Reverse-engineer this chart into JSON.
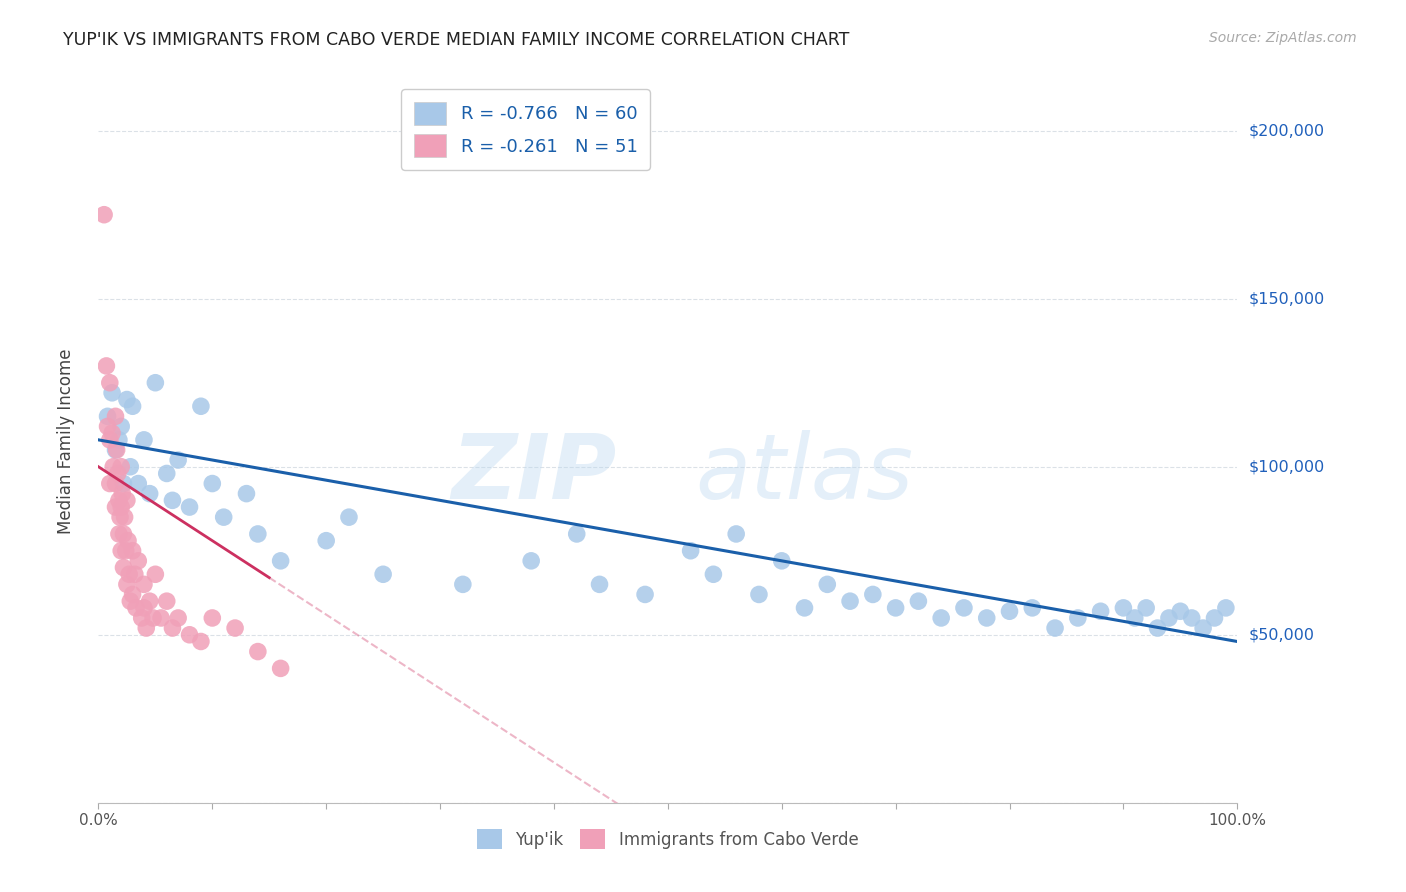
{
  "title": "YUP'IK VS IMMIGRANTS FROM CABO VERDE MEDIAN FAMILY INCOME CORRELATION CHART",
  "source_text": "Source: ZipAtlas.com",
  "ylabel": "Median Family Income",
  "xlim": [
    0,
    1.0
  ],
  "ylim": [
    0,
    215000
  ],
  "legend1_r": "-0.766",
  "legend1_n": "60",
  "legend2_r": "-0.261",
  "legend2_n": "51",
  "blue_scatter": "#a8c8e8",
  "pink_scatter": "#f0a0b8",
  "line_blue": "#1a5faa",
  "line_pink": "#cc3060",
  "right_label_color": "#2060bb",
  "yupik_x": [
    0.008,
    0.012,
    0.015,
    0.018,
    0.02,
    0.022,
    0.025,
    0.028,
    0.03,
    0.035,
    0.04,
    0.045,
    0.05,
    0.06,
    0.065,
    0.07,
    0.08,
    0.09,
    0.1,
    0.11,
    0.13,
    0.14,
    0.16,
    0.2,
    0.22,
    0.25,
    0.32,
    0.38,
    0.42,
    0.44,
    0.48,
    0.52,
    0.54,
    0.56,
    0.58,
    0.6,
    0.62,
    0.64,
    0.66,
    0.68,
    0.7,
    0.72,
    0.74,
    0.76,
    0.78,
    0.8,
    0.82,
    0.84,
    0.86,
    0.88,
    0.9,
    0.91,
    0.92,
    0.93,
    0.94,
    0.95,
    0.96,
    0.97,
    0.98,
    0.99
  ],
  "yupik_y": [
    115000,
    122000,
    105000,
    108000,
    112000,
    95000,
    120000,
    100000,
    118000,
    95000,
    108000,
    92000,
    125000,
    98000,
    90000,
    102000,
    88000,
    118000,
    95000,
    85000,
    92000,
    80000,
    72000,
    78000,
    85000,
    68000,
    65000,
    72000,
    80000,
    65000,
    62000,
    75000,
    68000,
    80000,
    62000,
    72000,
    58000,
    65000,
    60000,
    62000,
    58000,
    60000,
    55000,
    58000,
    55000,
    57000,
    58000,
    52000,
    55000,
    57000,
    58000,
    55000,
    58000,
    52000,
    55000,
    57000,
    55000,
    52000,
    55000,
    58000
  ],
  "cabo_x": [
    0.005,
    0.007,
    0.008,
    0.01,
    0.01,
    0.01,
    0.012,
    0.013,
    0.015,
    0.015,
    0.015,
    0.016,
    0.017,
    0.018,
    0.018,
    0.019,
    0.02,
    0.02,
    0.02,
    0.021,
    0.022,
    0.022,
    0.023,
    0.024,
    0.025,
    0.025,
    0.026,
    0.027,
    0.028,
    0.03,
    0.03,
    0.032,
    0.033,
    0.035,
    0.038,
    0.04,
    0.04,
    0.042,
    0.045,
    0.048,
    0.05,
    0.055,
    0.06,
    0.065,
    0.07,
    0.08,
    0.09,
    0.1,
    0.12,
    0.14,
    0.16
  ],
  "cabo_y": [
    175000,
    130000,
    112000,
    125000,
    108000,
    95000,
    110000,
    100000,
    115000,
    95000,
    88000,
    105000,
    98000,
    90000,
    80000,
    85000,
    100000,
    88000,
    75000,
    92000,
    80000,
    70000,
    85000,
    75000,
    90000,
    65000,
    78000,
    68000,
    60000,
    75000,
    62000,
    68000,
    58000,
    72000,
    55000,
    65000,
    58000,
    52000,
    60000,
    55000,
    68000,
    55000,
    60000,
    52000,
    55000,
    50000,
    48000,
    55000,
    52000,
    45000,
    40000
  ]
}
